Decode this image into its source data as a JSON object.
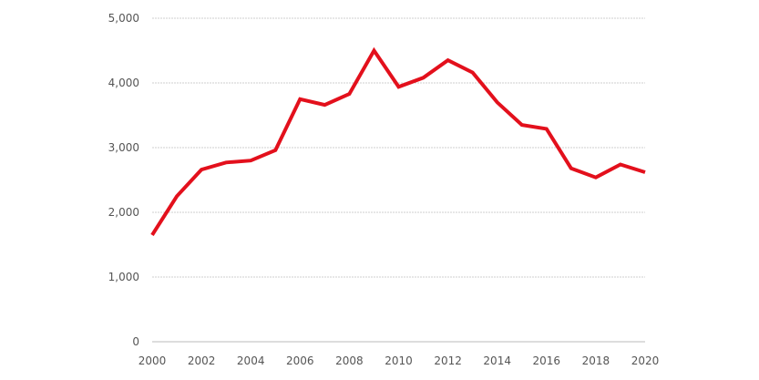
{
  "chart_data": {
    "type": "line",
    "title": "",
    "xlabel": "",
    "ylabel": "",
    "ylim": [
      0,
      5000
    ],
    "yticks": [
      "0",
      "1,000",
      "2,000",
      "3,000",
      "4,000",
      "5,000"
    ],
    "ytick_values": [
      0,
      1000,
      2000,
      3000,
      4000,
      5000
    ],
    "xticks": [
      "2000",
      "2002",
      "2004",
      "2006",
      "2008",
      "2010",
      "2012",
      "2014",
      "2016",
      "2018",
      "2020"
    ],
    "xtick_values": [
      2000,
      2002,
      2004,
      2006,
      2008,
      2010,
      2012,
      2014,
      2016,
      2018,
      2020
    ],
    "xlim": [
      2000,
      2020
    ],
    "grid": true,
    "legend": "none",
    "series": [
      {
        "color": "#e3101c",
        "x": [
          2000,
          2001,
          2002,
          2003,
          2004,
          2005,
          2006,
          2007,
          2008,
          2009,
          2010,
          2011,
          2012,
          2013,
          2014,
          2015,
          2016,
          2017,
          2018,
          2019,
          2020
        ],
        "values": [
          1650,
          2250,
          2660,
          2770,
          2800,
          2960,
          3750,
          3660,
          3830,
          4500,
          3940,
          4080,
          4350,
          4160,
          3700,
          3350,
          3290,
          2680,
          2540,
          2740,
          2620
        ]
      }
    ]
  }
}
